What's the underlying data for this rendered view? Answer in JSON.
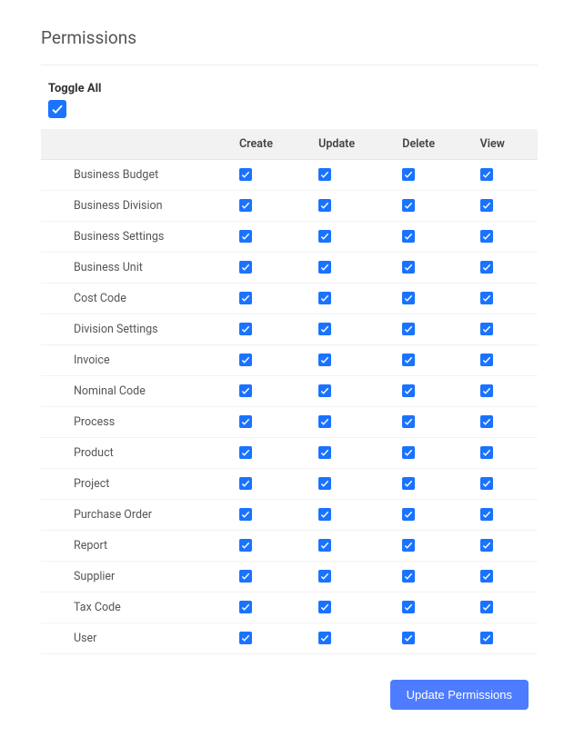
{
  "title": "Permissions",
  "toggle_all": {
    "label": "Toggle All",
    "checked": true
  },
  "columns": [
    "Create",
    "Update",
    "Delete",
    "View"
  ],
  "rows": [
    {
      "name": "Business Budget",
      "perms": [
        true,
        true,
        true,
        true
      ]
    },
    {
      "name": "Business Division",
      "perms": [
        true,
        true,
        true,
        true
      ]
    },
    {
      "name": "Business Settings",
      "perms": [
        true,
        true,
        true,
        true
      ]
    },
    {
      "name": "Business Unit",
      "perms": [
        true,
        true,
        true,
        true
      ]
    },
    {
      "name": "Cost Code",
      "perms": [
        true,
        true,
        true,
        true
      ]
    },
    {
      "name": "Division Settings",
      "perms": [
        true,
        true,
        true,
        true
      ]
    },
    {
      "name": "Invoice",
      "perms": [
        true,
        true,
        true,
        true
      ]
    },
    {
      "name": "Nominal Code",
      "perms": [
        true,
        true,
        true,
        true
      ]
    },
    {
      "name": "Process",
      "perms": [
        true,
        true,
        true,
        true
      ]
    },
    {
      "name": "Product",
      "perms": [
        true,
        true,
        true,
        true
      ]
    },
    {
      "name": "Project",
      "perms": [
        true,
        true,
        true,
        true
      ]
    },
    {
      "name": "Purchase Order",
      "perms": [
        true,
        true,
        true,
        true
      ]
    },
    {
      "name": "Report",
      "perms": [
        true,
        true,
        true,
        true
      ]
    },
    {
      "name": "Supplier",
      "perms": [
        true,
        true,
        true,
        true
      ]
    },
    {
      "name": "Tax Code",
      "perms": [
        true,
        true,
        true,
        true
      ]
    },
    {
      "name": "User",
      "perms": [
        true,
        true,
        true,
        true
      ]
    }
  ],
  "button_label": "Update Permissions",
  "colors": {
    "checkbox_on": "#1a73ff",
    "button_bg": "#4e7cff"
  }
}
